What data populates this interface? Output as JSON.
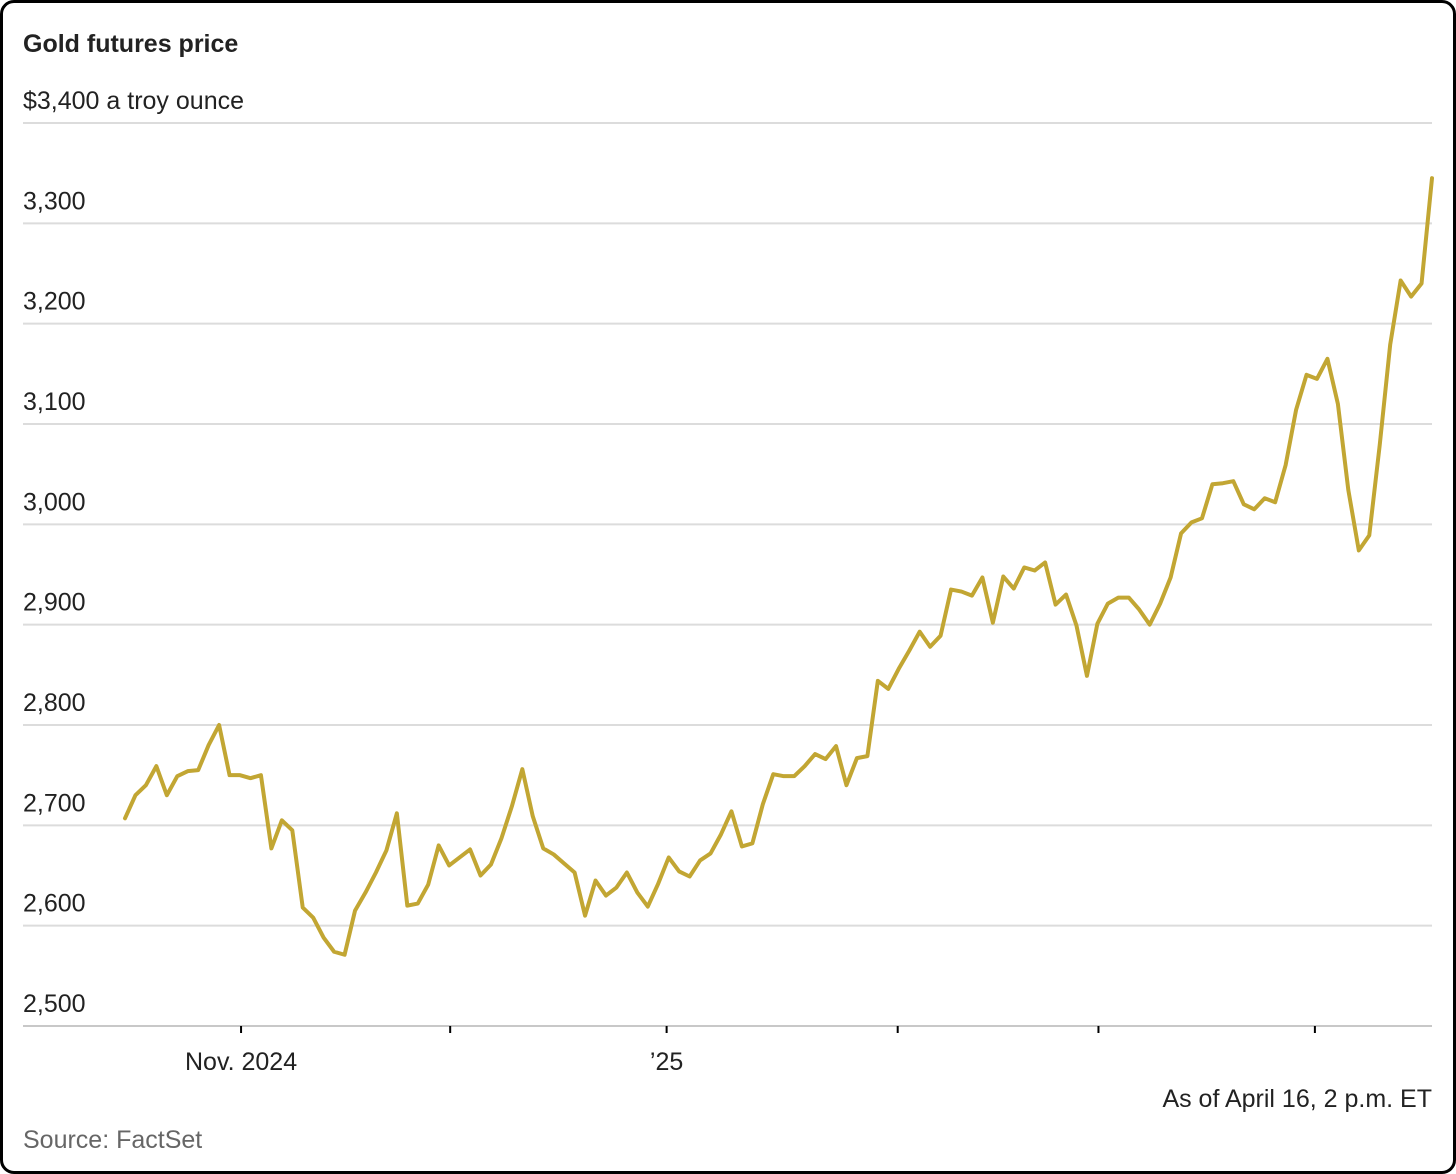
{
  "chart_data": {
    "type": "line",
    "title": "Gold futures price",
    "values": [
      2707,
      2730,
      2740,
      2759,
      2730,
      2749,
      2754,
      2755,
      2780,
      2800,
      2750,
      2750,
      2747,
      2750,
      2677,
      2705,
      2695,
      2618,
      2608,
      2588,
      2574,
      2571,
      2615,
      2633,
      2653,
      2675,
      2712,
      2620,
      2622,
      2641,
      2680,
      2660,
      2668,
      2676,
      2650,
      2661,
      2687,
      2719,
      2756,
      2709,
      2677,
      2671,
      2662,
      2653,
      2610,
      2645,
      2630,
      2638,
      2653,
      2633,
      2619,
      2642,
      2668,
      2654,
      2649,
      2665,
      2672,
      2691,
      2714,
      2679,
      2682,
      2721,
      2751,
      2749,
      2749,
      2759,
      2771,
      2766,
      2779,
      2740,
      2767,
      2769,
      2844,
      2836,
      2856,
      2874,
      2893,
      2878,
      2889,
      2935,
      2933,
      2929,
      2947,
      2902,
      2948,
      2936,
      2957,
      2954,
      2962,
      2920,
      2930,
      2899,
      2849,
      2901,
      2921,
      2927,
      2927,
      2915,
      2900,
      2921,
      2947,
      2991,
      3002,
      3006,
      3040,
      3041,
      3043,
      3020,
      3015,
      3026,
      3022,
      3059,
      3114,
      3149,
      3145,
      3165,
      3120,
      3034,
      2974,
      2989,
      3079,
      3179,
      3243,
      3227,
      3240,
      3345
    ],
    "color": "#c2a633",
    "xlim": [
      0,
      125
    ],
    "xticks": [
      {
        "value": 11.1,
        "label": "Nov. 2024"
      },
      {
        "value": 31.1,
        "label": null
      },
      {
        "value": 51.8,
        "label": "’25"
      },
      {
        "value": 73.9,
        "label": null
      },
      {
        "value": 93.1,
        "label": null
      },
      {
        "value": 113.8,
        "label": null
      }
    ],
    "ylim": [
      2500,
      3400
    ],
    "yticks": [
      {
        "value": 2500,
        "label": "2,500"
      },
      {
        "value": 2600,
        "label": "2,600"
      },
      {
        "value": 2700,
        "label": "2,700"
      },
      {
        "value": 2800,
        "label": "2,800"
      },
      {
        "value": 2900,
        "label": "2,900"
      },
      {
        "value": 3000,
        "label": "3,000"
      },
      {
        "value": 3100,
        "label": "3,100"
      },
      {
        "value": 3200,
        "label": "3,200"
      },
      {
        "value": 3300,
        "label": "3,300"
      },
      {
        "value": 3400,
        "label": "$3,400 a troy ounce"
      }
    ],
    "grid": true,
    "note": "As of April 16, 2 p.m. ET",
    "source": "Source: FactSet"
  }
}
